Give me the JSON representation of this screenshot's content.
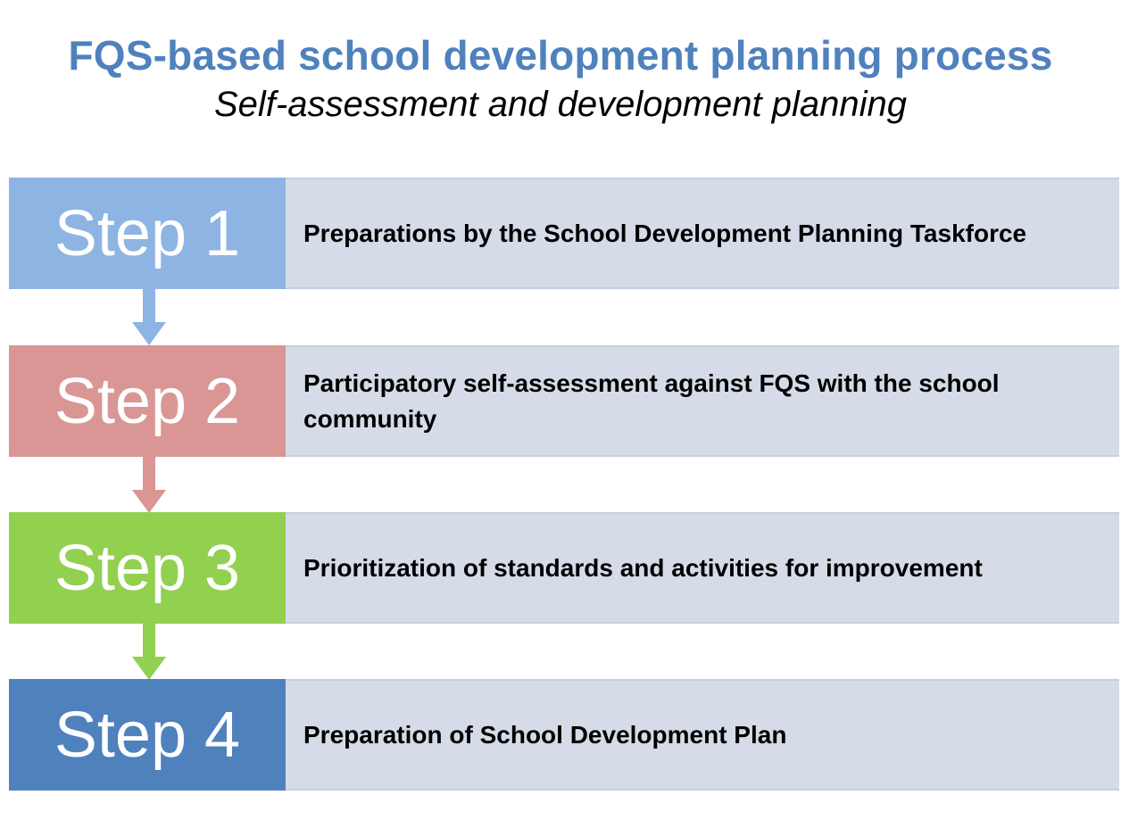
{
  "title": "FQS-based school development planning process",
  "subtitle": "Self-assessment and development planning",
  "steps": [
    {
      "label": "Step 1",
      "description": "Preparations by the School Development Planning Taskforce",
      "color": "#8eb4e3"
    },
    {
      "label": "Step 2",
      "description": "Participatory self-assessment against FQS with the school community",
      "color": "#d99694"
    },
    {
      "label": "Step 3",
      "description": "Prioritization of standards and activities for improvement",
      "color": "#92d050"
    },
    {
      "label": "Step 4",
      "description": "Preparation of School Development Plan",
      "color": "#4f81bd"
    }
  ],
  "colors": {
    "title": "#4f81bd",
    "description_background": "#d5dce8"
  }
}
